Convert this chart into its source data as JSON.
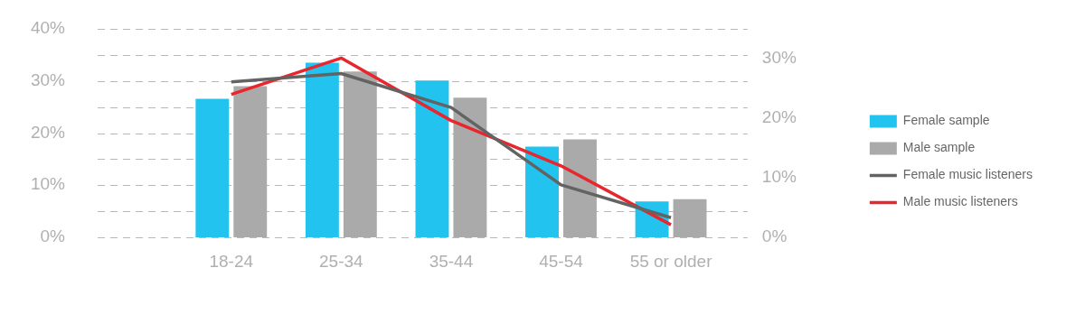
{
  "chart_data": {
    "type": "bar",
    "categories": [
      "18-24",
      "25-34",
      "35-44",
      "45-54",
      "55 or older"
    ],
    "series": [
      {
        "name": "Female sample",
        "color": "#22c3ee",
        "values": [
          26.6,
          33.5,
          30.1,
          17.4,
          6.9
        ]
      },
      {
        "name": "Male sample",
        "color": "#a9aaa9",
        "values": [
          29.0,
          31.8,
          26.8,
          18.8,
          7.3
        ]
      },
      {
        "name": "Female music listeners",
        "type": "line",
        "axis": "y2",
        "color": "#636363",
        "values": [
          26.1,
          27.5,
          21.8,
          8.8,
          3.3
        ]
      },
      {
        "name": "Male music listeners",
        "type": "line",
        "axis": "y2",
        "color": "#e8262e",
        "values": [
          24.0,
          30.1,
          19.6,
          12.0,
          2.1
        ]
      }
    ],
    "ylim": [
      0,
      40
    ],
    "yticks": [
      {
        "value": 0,
        "label": "0%"
      },
      {
        "value": 5,
        "label": null
      },
      {
        "value": 10,
        "label": "10%"
      },
      {
        "value": 15,
        "label": null
      },
      {
        "value": 20,
        "label": "20%"
      },
      {
        "value": 25,
        "label": null
      },
      {
        "value": 30,
        "label": "30%"
      },
      {
        "value": 35,
        "label": null
      },
      {
        "value": 40,
        "label": "40%"
      }
    ],
    "y2lim": [
      0,
      35
    ],
    "y2ticks": [
      {
        "value": 0,
        "label": "0%"
      },
      {
        "value": 10,
        "label": "10%"
      },
      {
        "value": 20,
        "label": "20%"
      },
      {
        "value": 30,
        "label": "30%"
      }
    ],
    "grid": "y",
    "legend": "right",
    "marker": "none",
    "line_style": "solid"
  }
}
